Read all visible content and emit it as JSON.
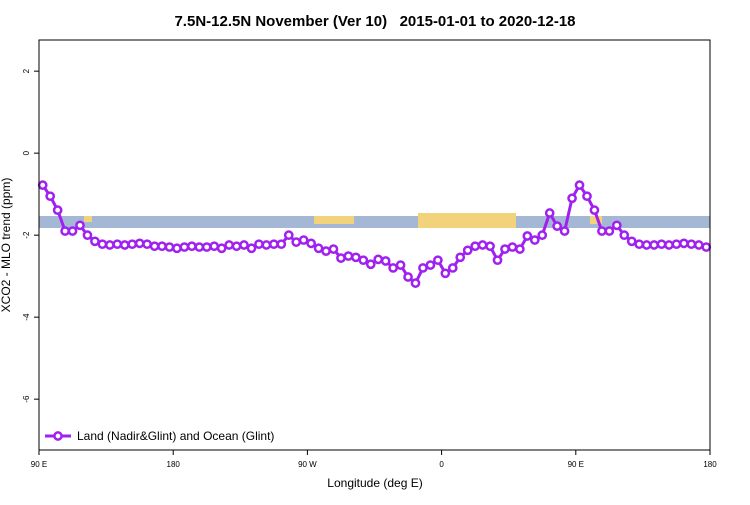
{
  "chart_data": {
    "type": "line",
    "title": "7.5N-12.5N November (Ver 10)   2015-01-01 to 2020-12-18",
    "xlabel": "Longitude (deg E)",
    "ylabel": "XCO2 - MLO trend (ppm)",
    "xlim": [
      90,
      540
    ],
    "ylim": [
      -7.24,
      2.76
    ],
    "xticks": [
      {
        "value": 90,
        "label": "90 E"
      },
      180,
      {
        "value": 270,
        "label": "90 W"
      },
      {
        "value": 360,
        "label": "0"
      },
      {
        "value": 450,
        "label": "90 E"
      },
      {
        "value": 540,
        "label": "180"
      }
    ],
    "yticks": [
      2,
      0,
      -2,
      -4,
      -6
    ],
    "legend": "bottom-left",
    "x": [
      92.5,
      97.5,
      102.5,
      107.5,
      112.5,
      117.5,
      122.5,
      127.5,
      132.5,
      137.5,
      142.5,
      147.5,
      152.5,
      157.5,
      162.5,
      167.5,
      172.5,
      177.5,
      182.5,
      187.5,
      192.5,
      197.5,
      202.5,
      207.5,
      212.5,
      217.5,
      222.5,
      227.5,
      232.5,
      237.5,
      242.5,
      247.5,
      252.5,
      257.5,
      262.5,
      267.5,
      272.5,
      277.5,
      282.5,
      287.5,
      292.5,
      297.5,
      302.5,
      307.5,
      312.5,
      317.5,
      322.5,
      327.5,
      332.5,
      337.5,
      342.5,
      347.5,
      352.5,
      357.5,
      362.5,
      367.5,
      372.5,
      377.5,
      382.5,
      387.5,
      392.5,
      397.5,
      402.5,
      407.5,
      412.5,
      417.5,
      422.5,
      427.5,
      432.5,
      437.5,
      442.5,
      447.5,
      452.5,
      457.5,
      462.5,
      467.5,
      472.5,
      477.5,
      482.5,
      487.5,
      492.5,
      497.5,
      502.5,
      507.5,
      512.5,
      517.5,
      522.5,
      527.5,
      532.5,
      537.5
    ],
    "series": [
      {
        "name": "Land (Nadir&Glint) and Ocean (Glint)",
        "color": "#a020f0",
        "values": [
          -0.78,
          -1.05,
          -1.39,
          -1.9,
          -1.9,
          -1.76,
          -2.0,
          -2.15,
          -2.22,
          -2.24,
          -2.22,
          -2.24,
          -2.22,
          -2.2,
          -2.22,
          -2.27,
          -2.27,
          -2.29,
          -2.32,
          -2.29,
          -2.27,
          -2.29,
          -2.29,
          -2.27,
          -2.32,
          -2.24,
          -2.27,
          -2.24,
          -2.32,
          -2.22,
          -2.24,
          -2.22,
          -2.22,
          -2.0,
          -2.17,
          -2.12,
          -2.2,
          -2.32,
          -2.39,
          -2.34,
          -2.56,
          -2.51,
          -2.54,
          -2.61,
          -2.71,
          -2.59,
          -2.63,
          -2.8,
          -2.73,
          -3.02,
          -3.17,
          -2.8,
          -2.73,
          -2.61,
          -2.93,
          -2.8,
          -2.54,
          -2.37,
          -2.27,
          -2.24,
          -2.27,
          -2.61,
          -2.34,
          -2.29,
          -2.34,
          -2.02,
          -2.12,
          -2.0,
          -1.46,
          -1.78,
          -1.9,
          -1.1,
          -0.78,
          -1.05,
          -1.39,
          -1.9,
          -1.9,
          -1.76,
          -2.0,
          -2.15,
          -2.22,
          -2.24,
          -2.24,
          -2.22,
          -2.24,
          -2.22,
          -2.2,
          -2.22,
          -2.24,
          -2.29
        ]
      }
    ]
  }
}
